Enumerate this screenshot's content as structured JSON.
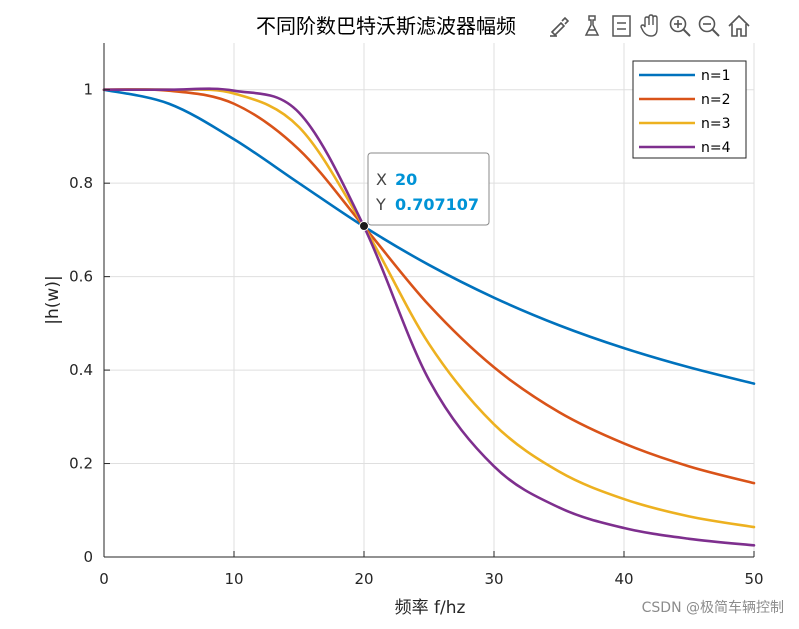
{
  "chart_data": {
    "type": "line",
    "title": "不同阶数巴特沃斯滤波器幅频",
    "xlabel": "频率 f/hz",
    "ylabel": "|h(w)|",
    "xlim": [
      0,
      50
    ],
    "ylim": [
      0,
      1.1
    ],
    "xticks": [
      "0",
      "10",
      "20",
      "30",
      "40",
      "50"
    ],
    "yticks": [
      "0",
      "0.2",
      "0.4",
      "0.6",
      "0.8",
      "1"
    ],
    "grid": true,
    "legend_position": "top-right",
    "series": [
      {
        "name": "n=1",
        "color": "#0072BD",
        "x": [
          0,
          5,
          10,
          15,
          20,
          25,
          30,
          35,
          40,
          45,
          50
        ],
        "y": [
          1.0,
          0.97,
          0.894,
          0.8,
          0.707,
          0.625,
          0.555,
          0.496,
          0.447,
          0.406,
          0.371
        ]
      },
      {
        "name": "n=2",
        "color": "#D95319",
        "x": [
          0,
          5,
          10,
          15,
          20,
          25,
          30,
          35,
          40,
          45,
          50
        ],
        "y": [
          1.0,
          0.998,
          0.97,
          0.872,
          0.707,
          0.539,
          0.406,
          0.31,
          0.243,
          0.194,
          0.158
        ]
      },
      {
        "name": "n=3",
        "color": "#EDB120",
        "x": [
          0,
          5,
          10,
          15,
          20,
          25,
          30,
          35,
          40,
          45,
          50
        ],
        "y": [
          1.0,
          1.0,
          0.992,
          0.92,
          0.707,
          0.456,
          0.284,
          0.183,
          0.124,
          0.087,
          0.064
        ]
      },
      {
        "name": "n=4",
        "color": "#7E2F8E",
        "x": [
          0,
          5,
          10,
          15,
          20,
          25,
          30,
          35,
          40,
          45,
          50
        ],
        "y": [
          1.0,
          1.0,
          0.998,
          0.951,
          0.707,
          0.379,
          0.194,
          0.106,
          0.062,
          0.039,
          0.025
        ]
      }
    ],
    "datatip": {
      "x_label": "X",
      "x_value": "20",
      "y_label": "Y",
      "y_value": "0.707107"
    }
  },
  "toolbar": {
    "icons": [
      "brush-icon",
      "data-cursor-icon",
      "legend-icon",
      "pan-icon",
      "zoom-in-icon",
      "zoom-out-icon",
      "home-icon"
    ]
  },
  "watermark": "CSDN @极简车辆控制",
  "colors": {
    "axis": "#262626",
    "grid": "#dfdfdf",
    "datatip_value": "#0093d6"
  }
}
